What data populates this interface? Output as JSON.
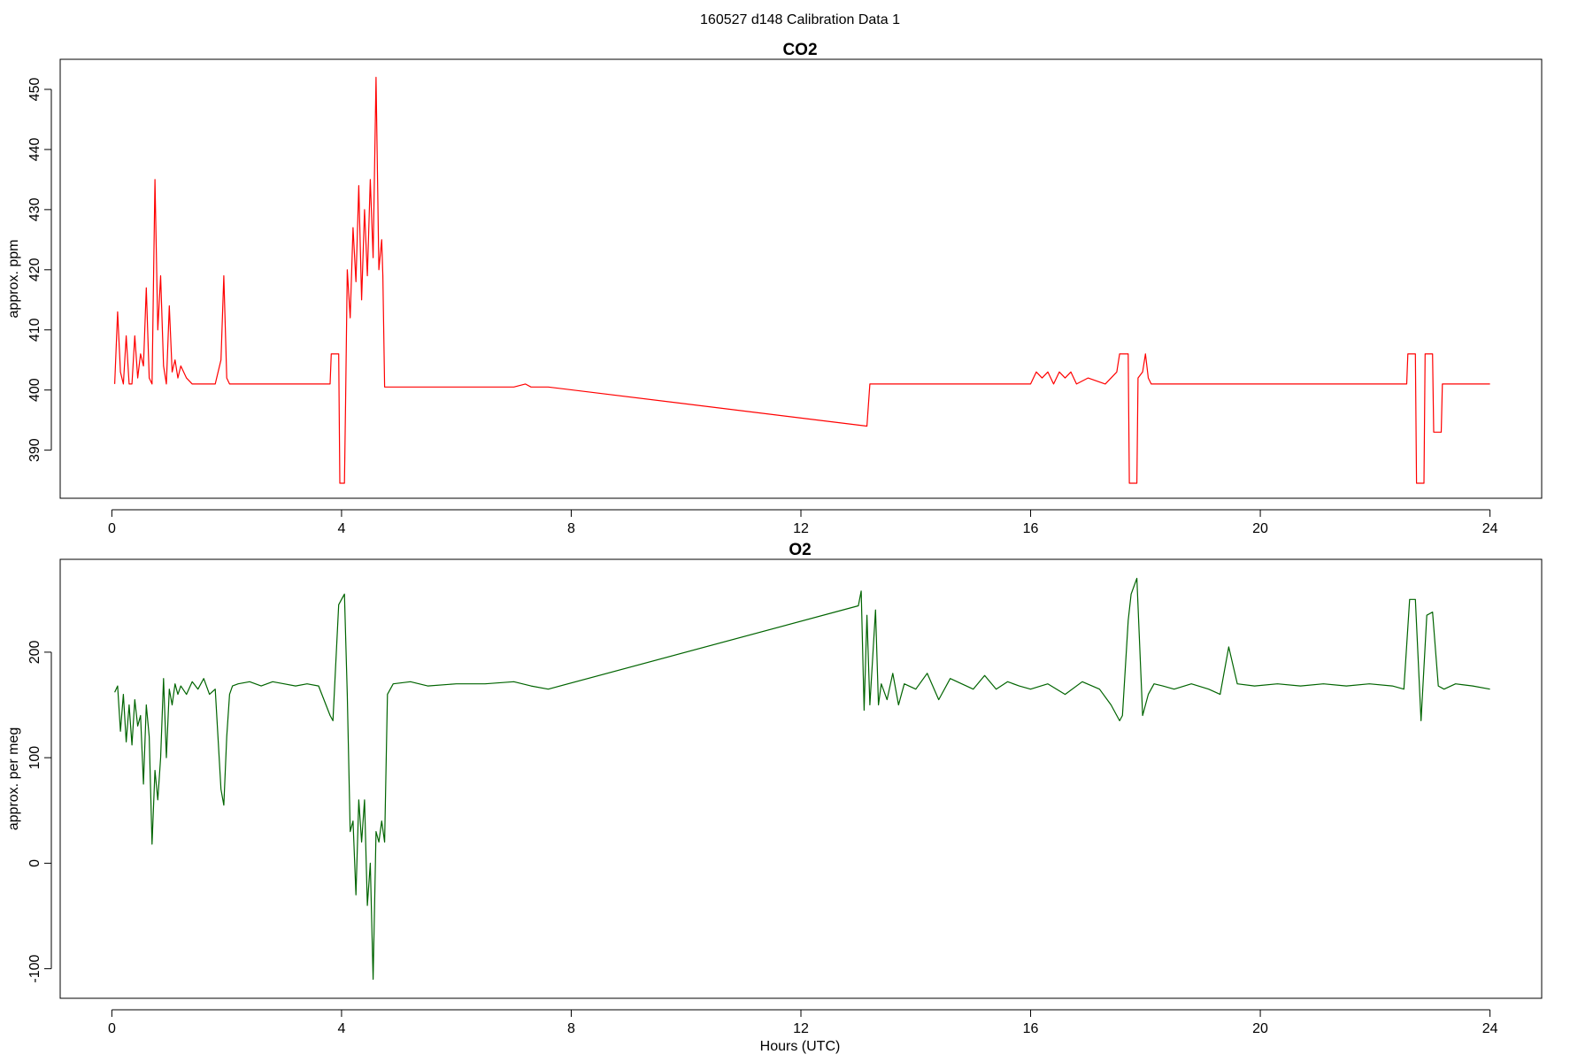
{
  "page": {
    "title": "160527   d148   Calibration Data 1",
    "xlabel": "Hours (UTC)"
  },
  "chart_data": [
    {
      "type": "line",
      "title": "CO2",
      "xlabel": "",
      "ylabel": "approx. ppm",
      "xlim": [
        -0.9,
        24.9
      ],
      "ylim": [
        382,
        455
      ],
      "xticks": [
        0,
        4,
        8,
        12,
        16,
        20,
        24
      ],
      "yticks": [
        390,
        400,
        410,
        420,
        430,
        440,
        450
      ],
      "grid": false,
      "series": [
        {
          "color": "#ff0000",
          "x": [
            0.05,
            0.1,
            0.15,
            0.2,
            0.25,
            0.3,
            0.35,
            0.4,
            0.45,
            0.5,
            0.55,
            0.6,
            0.65,
            0.7,
            0.75,
            0.8,
            0.85,
            0.9,
            0.95,
            1.0,
            1.05,
            1.1,
            1.15,
            1.2,
            1.3,
            1.4,
            1.5,
            1.6,
            1.7,
            1.8,
            1.9,
            1.95,
            2.0,
            2.05,
            2.1,
            2.2,
            2.4,
            2.8,
            3.2,
            3.6,
            3.8,
            3.82,
            3.95,
            3.97,
            4.05,
            4.07,
            4.1,
            4.15,
            4.2,
            4.25,
            4.3,
            4.35,
            4.4,
            4.45,
            4.5,
            4.55,
            4.6,
            4.65,
            4.7,
            4.72,
            4.75,
            5.0,
            6.0,
            7.0,
            7.2,
            7.3,
            7.6,
            13.15,
            13.2,
            13.5,
            14.0,
            15.0,
            16.0,
            16.1,
            16.2,
            16.3,
            16.4,
            16.5,
            16.6,
            16.7,
            16.8,
            17.0,
            17.3,
            17.5,
            17.55,
            17.7,
            17.72,
            17.85,
            17.87,
            17.95,
            18.0,
            18.05,
            18.1,
            18.3,
            19.0,
            20.0,
            21.0,
            22.0,
            22.55,
            22.57,
            22.7,
            22.72,
            22.85,
            22.87,
            23.0,
            23.02,
            23.15,
            23.17,
            24.0
          ],
          "y": [
            401,
            413,
            403,
            401,
            409,
            401,
            401,
            409,
            402,
            406,
            404,
            417,
            402,
            401,
            435,
            410,
            419,
            404,
            401,
            414,
            403,
            405,
            402,
            404,
            402,
            401,
            401,
            401,
            401,
            401,
            405,
            419,
            402,
            401,
            401,
            401,
            401,
            401,
            401,
            401,
            401,
            406,
            406,
            384.5,
            384.5,
            398,
            420,
            412,
            427,
            418,
            434,
            415,
            430,
            419,
            435,
            422,
            452,
            420,
            425,
            419,
            400.5,
            400.5,
            400.5,
            400.5,
            401,
            400.5,
            400.5,
            394,
            401,
            401,
            401,
            401,
            401,
            403,
            402,
            403,
            401,
            403,
            402,
            403,
            401,
            402,
            401,
            403,
            406,
            406,
            384.5,
            384.5,
            402,
            403,
            406,
            402,
            401,
            401,
            401,
            401,
            401,
            401,
            401,
            406,
            406,
            384.5,
            384.5,
            406,
            406,
            393,
            393,
            401,
            401
          ]
        }
      ]
    },
    {
      "type": "line",
      "title": "O2",
      "xlabel": "Hours (UTC)",
      "ylabel": "approx. per meg",
      "xlim": [
        -0.9,
        24.9
      ],
      "ylim": [
        -128,
        288
      ],
      "xticks": [
        0,
        4,
        8,
        12,
        16,
        20,
        24
      ],
      "yticks": [
        -100,
        0,
        100,
        200
      ],
      "grid": false,
      "series": [
        {
          "color": "#006400",
          "x": [
            0.05,
            0.1,
            0.15,
            0.2,
            0.25,
            0.3,
            0.35,
            0.4,
            0.45,
            0.5,
            0.55,
            0.6,
            0.65,
            0.7,
            0.75,
            0.8,
            0.85,
            0.9,
            0.95,
            1.0,
            1.05,
            1.1,
            1.15,
            1.2,
            1.3,
            1.4,
            1.5,
            1.6,
            1.7,
            1.8,
            1.9,
            1.95,
            2.0,
            2.05,
            2.1,
            2.2,
            2.4,
            2.6,
            2.8,
            3.0,
            3.2,
            3.4,
            3.6,
            3.8,
            3.85,
            3.95,
            4.0,
            4.05,
            4.1,
            4.15,
            4.2,
            4.25,
            4.3,
            4.35,
            4.4,
            4.45,
            4.5,
            4.55,
            4.6,
            4.65,
            4.7,
            4.75,
            4.8,
            4.9,
            5.2,
            5.5,
            6.0,
            6.5,
            7.0,
            7.3,
            7.6,
            13.0,
            13.05,
            13.1,
            13.15,
            13.2,
            13.3,
            13.35,
            13.4,
            13.5,
            13.6,
            13.7,
            13.8,
            14.0,
            14.2,
            14.4,
            14.6,
            14.8,
            15.0,
            15.2,
            15.4,
            15.6,
            15.8,
            16.0,
            16.3,
            16.6,
            16.9,
            17.2,
            17.4,
            17.55,
            17.6,
            17.7,
            17.75,
            17.85,
            17.95,
            18.05,
            18.15,
            18.3,
            18.5,
            18.8,
            19.1,
            19.3,
            19.45,
            19.6,
            19.9,
            20.3,
            20.7,
            21.1,
            21.5,
            21.9,
            22.3,
            22.5,
            22.6,
            22.7,
            22.8,
            22.9,
            23.0,
            23.1,
            23.2,
            23.4,
            23.7,
            24.0
          ],
          "y": [
            162,
            168,
            125,
            160,
            115,
            150,
            112,
            155,
            130,
            140,
            75,
            150,
            120,
            18,
            88,
            60,
            100,
            175,
            100,
            165,
            150,
            170,
            160,
            168,
            160,
            172,
            165,
            175,
            160,
            165,
            70,
            55,
            120,
            160,
            168,
            170,
            172,
            168,
            172,
            170,
            168,
            170,
            168,
            140,
            135,
            245,
            250,
            255,
            160,
            30,
            40,
            -30,
            60,
            20,
            60,
            -40,
            0,
            -110,
            30,
            20,
            40,
            20,
            160,
            170,
            172,
            168,
            170,
            170,
            172,
            168,
            165,
            244,
            258,
            145,
            235,
            150,
            240,
            150,
            170,
            155,
            180,
            150,
            170,
            165,
            180,
            155,
            175,
            170,
            165,
            178,
            165,
            172,
            168,
            165,
            170,
            160,
            172,
            165,
            150,
            135,
            140,
            230,
            255,
            270,
            140,
            160,
            170,
            168,
            165,
            170,
            165,
            160,
            205,
            170,
            168,
            170,
            168,
            170,
            168,
            170,
            168,
            165,
            250,
            250,
            135,
            235,
            238,
            168,
            165,
            170,
            168,
            165
          ]
        }
      ]
    }
  ]
}
